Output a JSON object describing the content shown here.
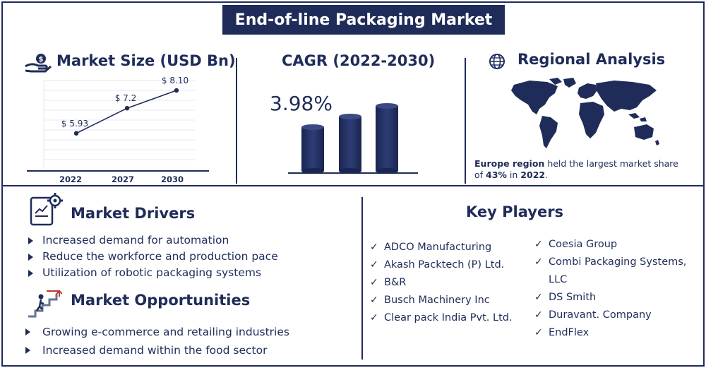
{
  "title": "End-of-line Packaging Market",
  "market_size": {
    "heading": "Market Size (USD Bn)",
    "chart_data": {
      "type": "line",
      "categories": [
        "2022",
        "2027",
        "2030"
      ],
      "values": [
        5.93,
        7.2,
        8.1
      ],
      "data_labels": [
        "$ 5.93",
        "$ 7.2",
        "$ 8.10"
      ],
      "ylabel": "",
      "xlabel": "",
      "grid": true
    }
  },
  "cagr": {
    "heading": "CAGR (2022-2030)",
    "value": "3.98%"
  },
  "regional": {
    "heading": "Regional Analysis",
    "note_bold_region": "Europe region",
    "note_text_1": " held the largest market share of ",
    "note_bold_share": "43%",
    "note_text_2": " in ",
    "note_bold_year": "2022",
    "note_text_3": "."
  },
  "drivers": {
    "heading": "Market Drivers",
    "items": [
      "Increased demand for automation",
      "Reduce the workforce and production pace",
      "Utilization of robotic packaging systems"
    ]
  },
  "opportunities": {
    "heading": "Market Opportunities",
    "items": [
      "Growing e-commerce and retailing industries",
      "Increased demand within the food sector"
    ]
  },
  "key_players": {
    "heading": "Key Players",
    "col1": [
      "ADCO Manufacturing",
      "Akash Packtech (P) Ltd.",
      "B&R",
      "Busch Machinery Inc",
      "Clear pack India Pvt. Ltd."
    ],
    "col2": [
      "Coesia Group",
      "Combi Packaging Systems, LLC",
      "DS Smith",
      "Duravant. Company",
      "EndFlex"
    ]
  },
  "colors": {
    "primary": "#1f2c59",
    "background": "#ffffff"
  }
}
